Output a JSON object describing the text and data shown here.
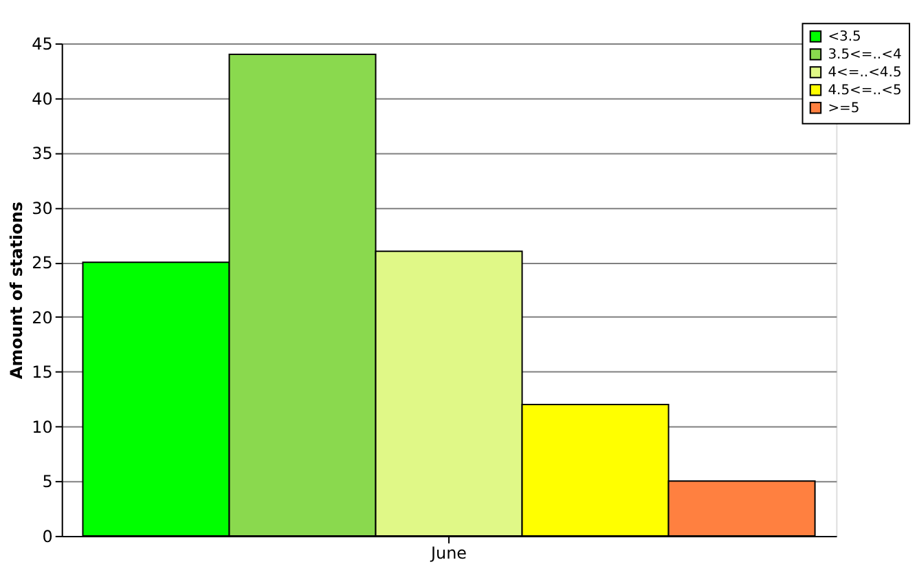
{
  "chart_data": {
    "type": "bar",
    "ylabel": "Amount of stations",
    "categories": [
      "June"
    ],
    "series": [
      {
        "name": "<3.5",
        "color": "#00ff00",
        "values": [
          25
        ]
      },
      {
        "name": "3.5<=..<4",
        "color": "#8ad94e",
        "values": [
          44
        ]
      },
      {
        "name": "4<=..<4.5",
        "color": "#e0f887",
        "values": [
          26
        ]
      },
      {
        "name": "4.5<=..<5",
        "color": "#ffff00",
        "values": [
          12
        ]
      },
      {
        "name": ">=5",
        "color": "#ff8040",
        "values": [
          5
        ]
      }
    ],
    "ylim": [
      0,
      45
    ],
    "yticks": [
      0,
      5,
      10,
      15,
      20,
      25,
      30,
      35,
      40,
      45
    ],
    "grid": "y",
    "legend": "top right"
  }
}
